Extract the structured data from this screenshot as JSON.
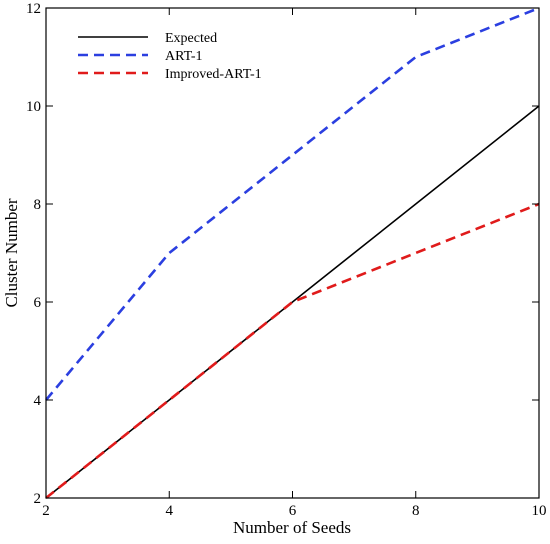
{
  "chart_data": {
    "type": "line",
    "title": "",
    "xlabel": "Number of Seeds",
    "ylabel": "Cluster Number",
    "xlim": [
      2,
      10
    ],
    "ylim": [
      2,
      12
    ],
    "xticks": [
      2,
      4,
      6,
      8,
      10
    ],
    "yticks": [
      2,
      4,
      6,
      8,
      10,
      12
    ],
    "xtick_labels": [
      "2",
      "4",
      "6",
      "8",
      "10"
    ],
    "ytick_labels": [
      "2",
      "4",
      "6",
      "8",
      "10",
      "12"
    ],
    "grid": false,
    "legend_position": "top-left",
    "series": [
      {
        "name": "Expected",
        "color": "#000000",
        "style": "solid",
        "x": [
          2,
          4,
          6,
          8,
          10
        ],
        "y": [
          2,
          4,
          6,
          8,
          10
        ]
      },
      {
        "name": "ART-1",
        "color": "#2b3fe0",
        "style": "dashed",
        "x": [
          2,
          4,
          6,
          8,
          10
        ],
        "y": [
          4,
          7,
          9,
          11,
          12
        ]
      },
      {
        "name": "Improved-ART-1",
        "color": "#e01b1b",
        "style": "dashed",
        "x": [
          2,
          4,
          6,
          8,
          10
        ],
        "y": [
          2,
          4,
          6,
          7,
          8
        ]
      }
    ]
  }
}
